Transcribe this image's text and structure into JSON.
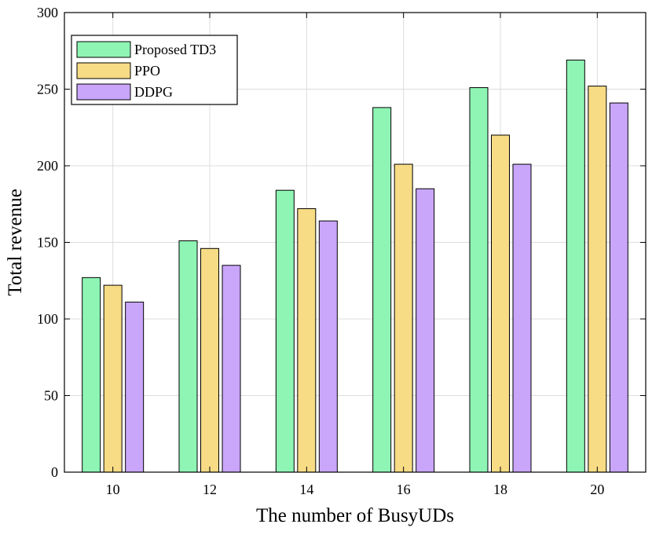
{
  "chart_data": {
    "type": "bar",
    "title": "",
    "xlabel": "The number of BusyUDs",
    "ylabel": "Total revenue",
    "categories": [
      "10",
      "12",
      "14",
      "16",
      "18",
      "20"
    ],
    "series": [
      {
        "name": "Proposed TD3",
        "color": "#8ef5b5",
        "values": [
          127,
          151,
          184,
          238,
          251,
          269
        ]
      },
      {
        "name": "PPO",
        "color": "#f7dc85",
        "values": [
          122,
          146,
          172,
          201,
          220,
          252
        ]
      },
      {
        "name": "DDPG",
        "color": "#c9a6fa",
        "values": [
          111,
          135,
          164,
          185,
          201,
          241
        ]
      }
    ],
    "ylim": [
      0,
      300
    ],
    "yticks": [
      "0",
      "50",
      "100",
      "150",
      "200",
      "250",
      "300"
    ],
    "grid": true,
    "legend_position": "top-left"
  }
}
